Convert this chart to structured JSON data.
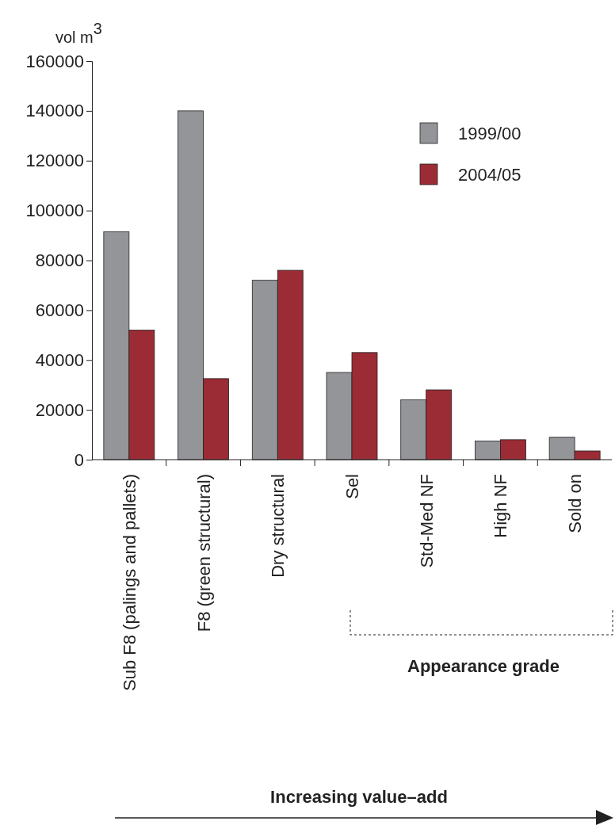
{
  "chart_data": {
    "type": "bar",
    "ylabel": "vol m$^{3}$",
    "categories": [
      "Sub F8 (palings and pallets)",
      "F8 (green structural)",
      "Dry structural",
      "Sel",
      "Std-Med NF",
      "High NF",
      "Sold on"
    ],
    "series": [
      {
        "name": "1999/00",
        "color": "#939598",
        "values": [
          91500,
          140000,
          72000,
          35000,
          24000,
          7500,
          9000
        ]
      },
      {
        "name": "2004/05",
        "color": "#9b2c35",
        "values": [
          52000,
          32500,
          76000,
          43000,
          28000,
          8000,
          3500
        ]
      }
    ],
    "ylim": [
      0,
      160000
    ],
    "yticks": [
      0,
      20000,
      40000,
      60000,
      80000,
      100000,
      120000,
      140000,
      160000
    ],
    "grid": false,
    "legend": "top right",
    "annotations": [
      "Appearance grade",
      "Increasing value–add"
    ]
  }
}
